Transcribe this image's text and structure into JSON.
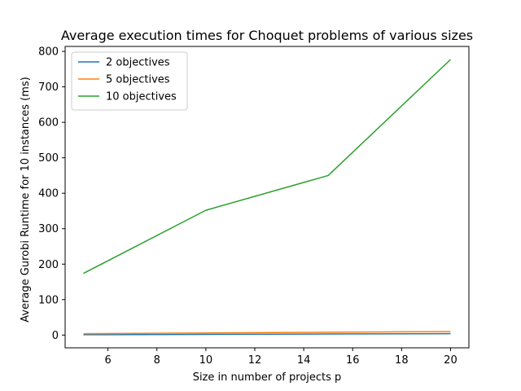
{
  "chart_data": {
    "type": "line",
    "title": "Average execution times for Choquet problems of various sizes",
    "xlabel": "Size in number of projects p",
    "ylabel": "Average Gurobi Runtime for 10 instances (ms)",
    "x": [
      5,
      10,
      15,
      20
    ],
    "xlim": [
      4.25,
      20.75
    ],
    "ylim": [
      -36,
      814
    ],
    "xticks": [
      6,
      8,
      10,
      12,
      14,
      16,
      18,
      20
    ],
    "yticks": [
      0,
      100,
      200,
      300,
      400,
      500,
      600,
      700,
      800
    ],
    "grid": false,
    "legend_position": "top-left",
    "series": [
      {
        "name": "2 objectives",
        "color": "#1f77b4",
        "values": [
          1,
          2,
          3,
          4
        ]
      },
      {
        "name": "5 objectives",
        "color": "#ff7f0e",
        "values": [
          4,
          6,
          8,
          10
        ]
      },
      {
        "name": "10 objectives",
        "color": "#2ca02c",
        "values": [
          174,
          352,
          450,
          777
        ]
      }
    ]
  }
}
